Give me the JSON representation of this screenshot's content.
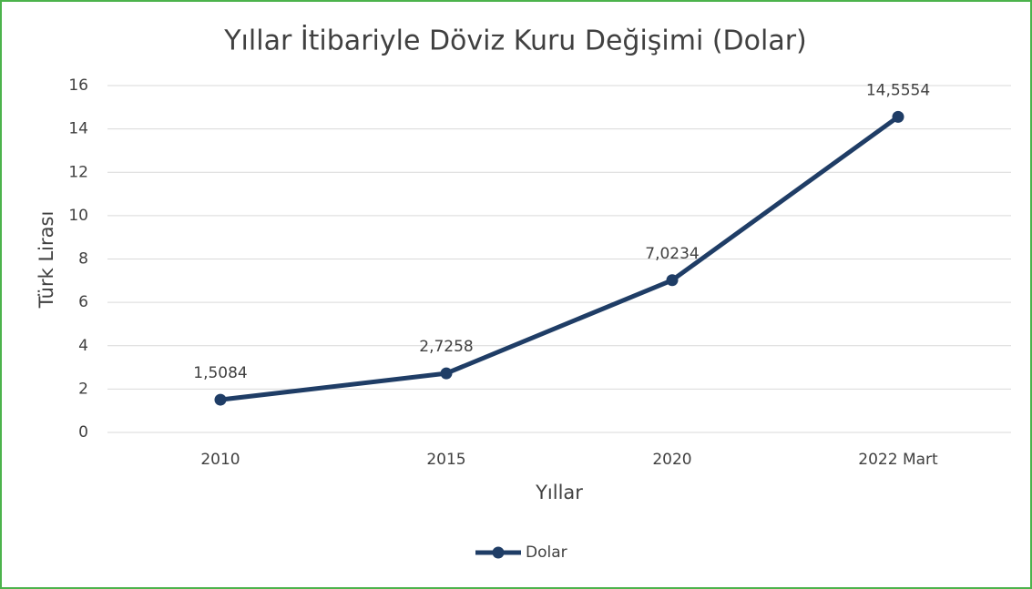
{
  "chart_data": {
    "type": "line",
    "title": "Yıllar İtibariyle Döviz Kuru Değişimi (Dolar)",
    "x_label": "Yıllar",
    "y_label": "Türk Lirası",
    "categories": [
      "2010",
      "2015",
      "2020",
      "2022 Mart"
    ],
    "series": [
      {
        "name": "Dolar",
        "color": "#1f3d66",
        "values": [
          1.5084,
          2.7258,
          7.0234,
          14.5554
        ],
        "value_labels": [
          "1,5084",
          "2,7258",
          "7,0234",
          "14,5554"
        ]
      }
    ],
    "ylim": [
      0,
      16
    ],
    "yticks": [
      0,
      2,
      4,
      6,
      8,
      10,
      12,
      14,
      16
    ],
    "grid": true,
    "legend": "bottom"
  }
}
